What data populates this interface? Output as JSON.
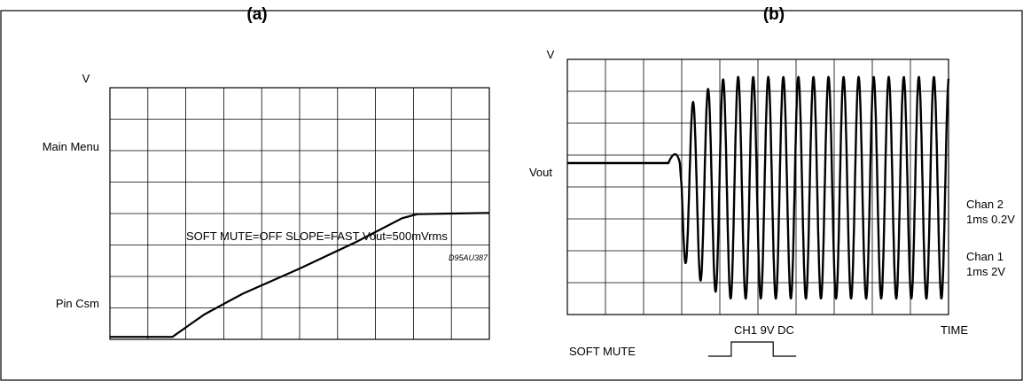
{
  "panels": {
    "a": {
      "label": "(a)"
    },
    "b": {
      "label": "(b)"
    }
  },
  "chart_data": [
    {
      "type": "line",
      "title": "",
      "ylabel": "V",
      "y_tick_labels": [
        "Main Menu",
        "Pin Csm"
      ],
      "annotation": "SOFT MUTE=OFF SLOPE=FAST Vout=500mVrms",
      "figure_code": "D95AU387",
      "grid": true,
      "grid_divisions": {
        "x": 10,
        "y": 8
      },
      "series": [
        {
          "values": [
            [
              0.0,
              0.08
            ],
            [
              1.65,
              0.08
            ],
            [
              2.2,
              0.55
            ],
            [
              2.5,
              0.8
            ],
            [
              3.5,
              1.45
            ],
            [
              5.0,
              2.25
            ],
            [
              6.5,
              3.1
            ],
            [
              7.7,
              3.85
            ],
            [
              8.1,
              3.98
            ],
            [
              9.0,
              4.0
            ],
            [
              10.0,
              4.02
            ]
          ]
        }
      ]
    },
    {
      "type": "line",
      "title": "",
      "ylabel": "V",
      "xlabel": "TIME",
      "y_tick_labels": [
        "Vout"
      ],
      "right_labels": [
        "Chan 2",
        "1ms 0.2V",
        "Chan 1",
        "1ms 2V"
      ],
      "bottom_labels": {
        "channel": "CH1 9V DC",
        "soft_mute": "SOFT MUTE"
      },
      "grid": true,
      "grid_divisions": {
        "x": 10,
        "y": 8
      },
      "series": [
        {
          "name": "Vout",
          "baseline_y": 4.75,
          "flat_until_x": 2.65,
          "dip": {
            "x": 2.95,
            "y": 5.3
          },
          "onset_x": 3.0,
          "period_x": 0.395,
          "envelope_max_y": 7.45,
          "envelope_min_y": 0.5,
          "rise_end_x": 4.2,
          "end_x": 10.0
        }
      ],
      "pulse": {
        "rise_x": 4.3,
        "fall_x": 5.4
      }
    }
  ]
}
